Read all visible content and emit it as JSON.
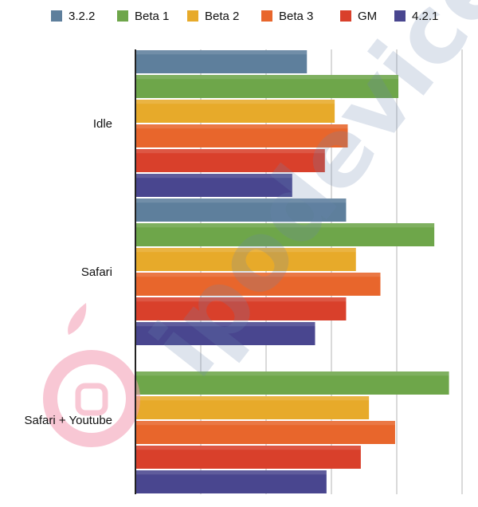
{
  "chart_data": {
    "type": "bar",
    "orientation": "horizontal",
    "categories": [
      "Idle",
      "Safari",
      "Safari + Youtube"
    ],
    "series": [
      {
        "name": "3.2.2",
        "color": "#5e7f9c",
        "values": [
          105,
          129,
          null
        ]
      },
      {
        "name": "Beta 1",
        "color": "#6ea64a",
        "values": [
          161,
          183,
          192
        ]
      },
      {
        "name": "Beta 2",
        "color": "#e7aa2a",
        "values": [
          122,
          135,
          143
        ]
      },
      {
        "name": "Beta 3",
        "color": "#e8662c",
        "values": [
          130,
          150,
          159
        ]
      },
      {
        "name": "GM",
        "color": "#d9402b",
        "values": [
          116,
          129,
          138
        ]
      },
      {
        "name": "4.2.1",
        "color": "#49468f",
        "values": [
          96,
          110,
          117
        ]
      }
    ],
    "xlim": [
      0,
      200
    ],
    "grid": true,
    "legend_position": "top",
    "xlabel": "",
    "ylabel": "",
    "title": ""
  },
  "watermark": {
    "text": "ipodevice",
    "icon": "apple-logo-icon"
  }
}
